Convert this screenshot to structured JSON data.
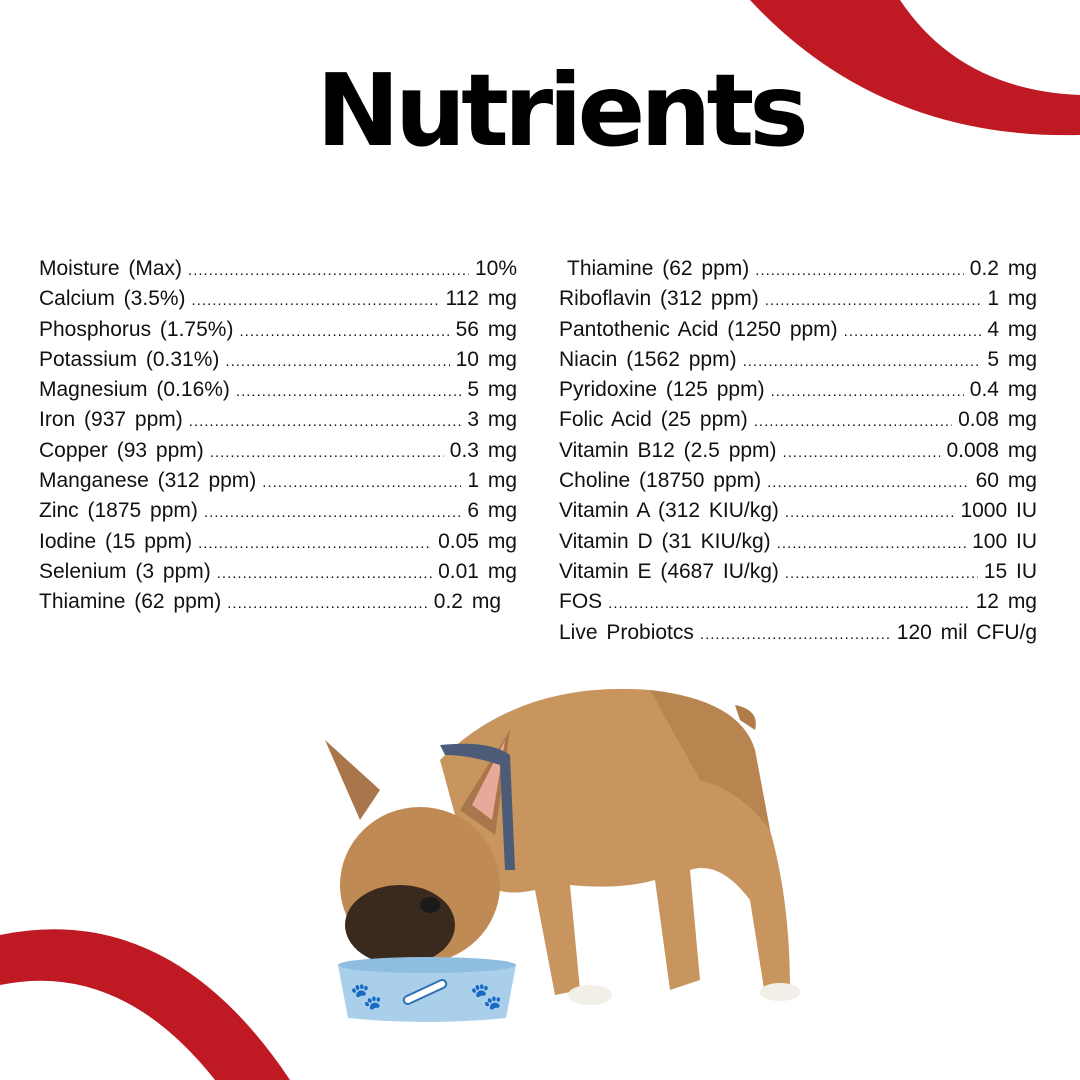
{
  "title": "Nutrients",
  "colors": {
    "accent": "#bf1a24",
    "text": "#111111"
  },
  "left_column": [
    {
      "label": "Moisture  (Max)",
      "value": "10%"
    },
    {
      "label": "Calcium  (3.5%)",
      "value": "112  mg"
    },
    {
      "label": "Phosphorus  (1.75%)",
      "value": "56  mg"
    },
    {
      "label": "Potassium  (0.31%)",
      "value": "10  mg"
    },
    {
      "label": "Magnesium  (0.16%)",
      "value": "5  mg"
    },
    {
      "label": "Iron  (937  ppm)",
      "value": "3  mg"
    },
    {
      "label": "Copper  (93  ppm)",
      "value": "0.3  mg"
    },
    {
      "label": "Manganese  (312  ppm)",
      "value": "1  mg"
    },
    {
      "label": "Zinc  (1875  ppm)",
      "value": "6  mg"
    },
    {
      "label": "Iodine  (15  ppm)",
      "value": "0.05  mg"
    },
    {
      "label": "Selenium  (3  ppm)",
      "value": "0.01  mg"
    },
    {
      "label": "Thiamine (62 ppm)",
      "value": "0.2 mg"
    }
  ],
  "right_column": [
    {
      "label": "Thiamine (62 ppm)",
      "value": "0.2  mg"
    },
    {
      "label": "Riboflavin  (312  ppm)",
      "value": "1  mg"
    },
    {
      "label": "Pantothenic  Acid  (1250  ppm)",
      "value": "4  mg"
    },
    {
      "label": "Niacin  (1562  ppm)",
      "value": "5  mg"
    },
    {
      "label": "Pyridoxine  (125  ppm)",
      "value": "0.4  mg"
    },
    {
      "label": "Folic  Acid  (25  ppm)",
      "value": "0.08  mg"
    },
    {
      "label": "Vitamin  B12  (2.5  ppm)",
      "value": "0.008  mg"
    },
    {
      "label": "Choline  (18750  ppm)",
      "value": "60  mg"
    },
    {
      "label": "Vitamin  A  (312  KIU/kg)",
      "value": "1000  IU"
    },
    {
      "label": "Vitamin  D  (31  KIU/kg)",
      "value": "100  IU"
    },
    {
      "label": "Vitamin  E  (4687  IU/kg)",
      "value": "15  IU"
    },
    {
      "label": "FOS",
      "value": "12  mg"
    },
    {
      "label": "Live Probiotcs",
      "value": "120 mil CFU/g"
    }
  ],
  "image": {
    "subject": "french-bulldog-eating-from-bowl"
  }
}
